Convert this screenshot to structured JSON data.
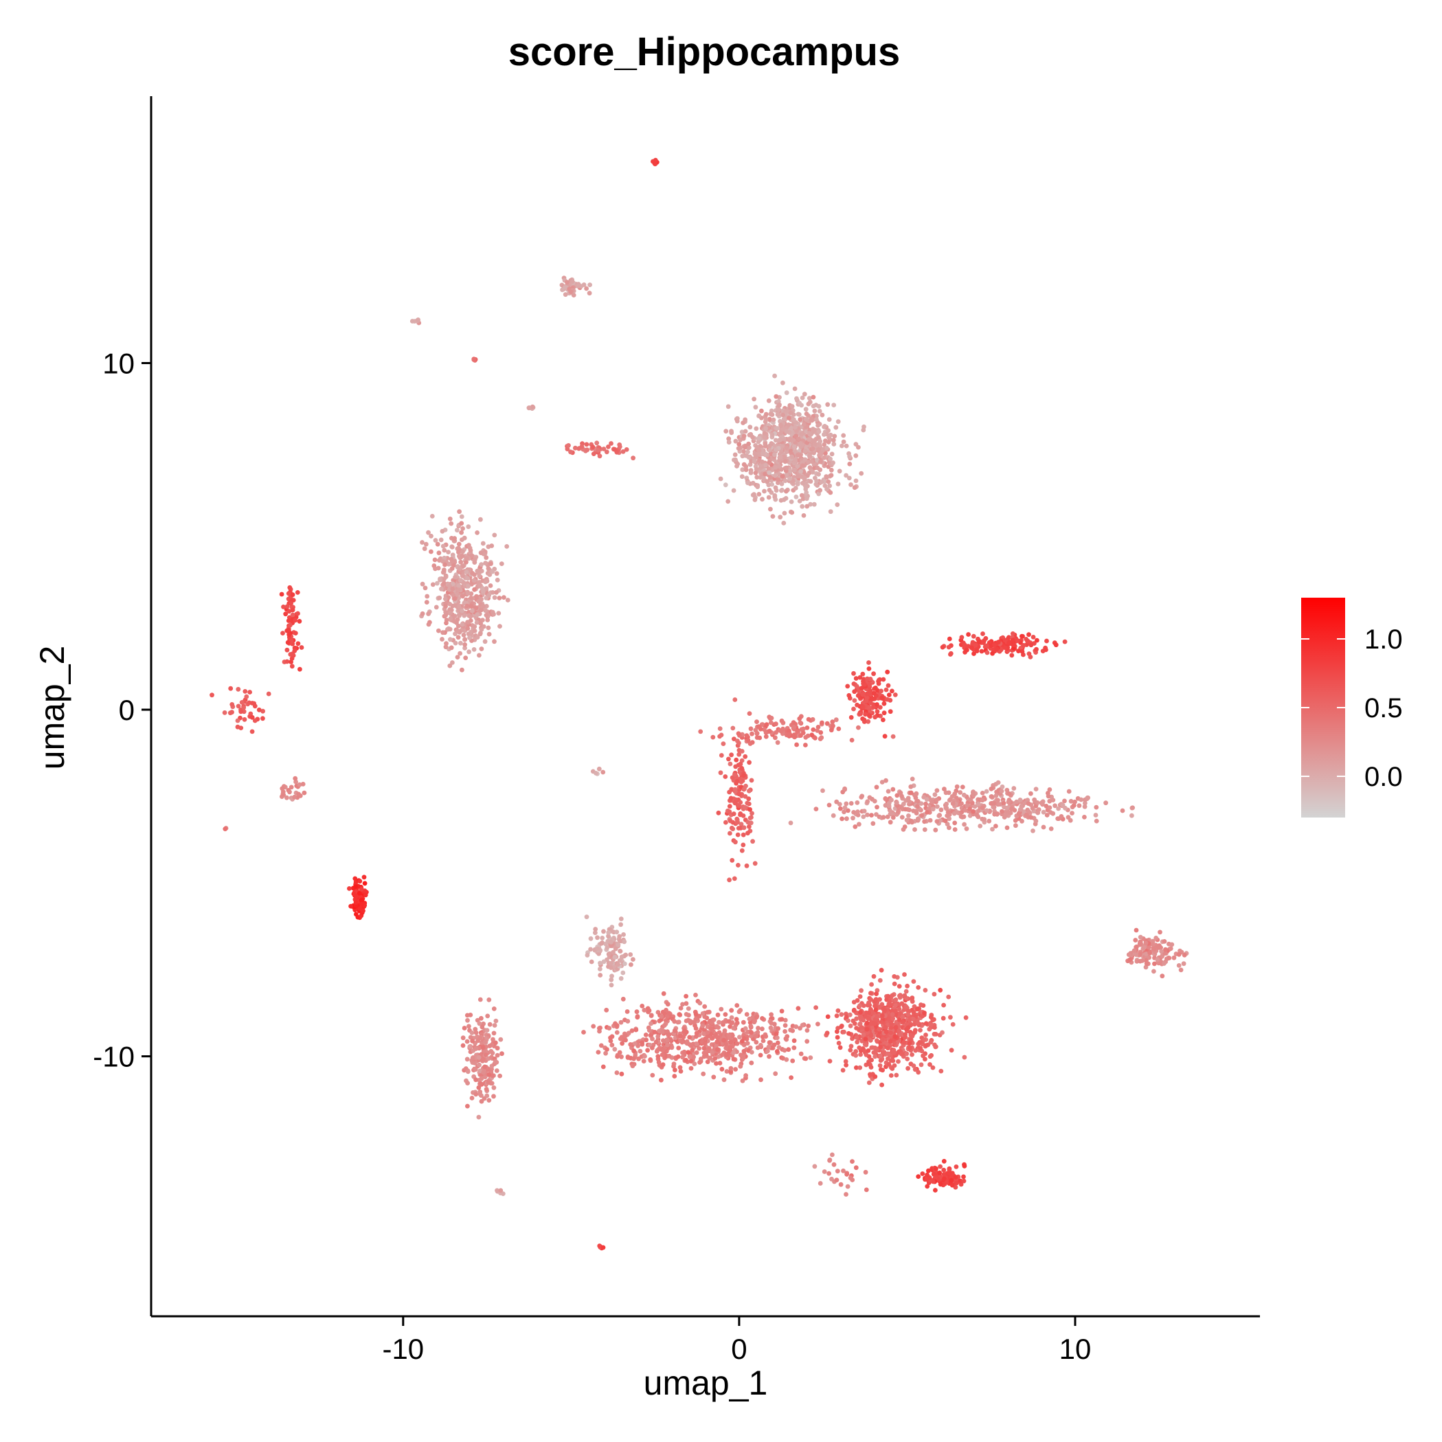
{
  "chart_data": {
    "type": "scatter",
    "title": "score_Hippocampus",
    "xlabel": "umap_1",
    "ylabel": "umap_2",
    "xlim": [
      -17.5,
      15.5
    ],
    "ylim": [
      -17.5,
      17.7
    ],
    "xticks": [
      -10,
      0,
      10
    ],
    "xtick_labels": [
      "-10",
      "0",
      "10"
    ],
    "yticks": [
      10,
      0,
      -10
    ],
    "ytick_labels": [
      "10",
      "0",
      "-10"
    ],
    "grid": false,
    "legend": {
      "type": "colorbar",
      "placement": "right",
      "min": -0.3,
      "max": 1.3,
      "ticks": [
        1.0,
        0.5,
        0.0
      ],
      "tick_labels": [
        "1.0",
        "0.5",
        "0.0"
      ],
      "low_color": "#d3d3d3",
      "high_color": "#ff0000"
    },
    "clusters": [
      {
        "label": "top-center ellipse",
        "center": [
          1.5,
          7.5
        ],
        "spread": [
          4.2,
          3.8
        ],
        "count": 900,
        "score": 0.05
      },
      {
        "label": "left oval",
        "center": [
          -8.2,
          3.5
        ],
        "spread": [
          2.6,
          4.5
        ],
        "count": 520,
        "score": 0.1
      },
      {
        "label": "right elongated band",
        "center": [
          6.8,
          -2.8
        ],
        "spread": [
          10.5,
          1.6
        ],
        "count": 480,
        "score": 0.2
      },
      {
        "label": "bottom dense right",
        "center": [
          4.5,
          -9.2
        ],
        "spread": [
          3.8,
          3.2
        ],
        "count": 650,
        "score": 0.55
      },
      {
        "label": "bottom arc",
        "center": [
          -1.0,
          -9.5
        ],
        "spread": [
          8.0,
          2.5
        ],
        "count": 650,
        "score": 0.35
      },
      {
        "label": "bottom-left hook",
        "center": [
          -7.6,
          -10.0
        ],
        "spread": [
          1.4,
          3.5
        ],
        "count": 200,
        "score": 0.25
      },
      {
        "label": "top arc fade",
        "center": [
          -3.8,
          -7.0
        ],
        "spread": [
          1.6,
          2.2
        ],
        "count": 120,
        "score": 0.02
      },
      {
        "label": "upper-right streak",
        "center": [
          7.8,
          1.9
        ],
        "spread": [
          3.8,
          0.8
        ],
        "count": 160,
        "score": 0.75
      },
      {
        "label": "center triangle",
        "center": [
          3.9,
          0.4
        ],
        "spread": [
          1.6,
          2.0
        ],
        "count": 150,
        "score": 0.7
      },
      {
        "label": "center branch",
        "center": [
          0.0,
          -2.5
        ],
        "spread": [
          1.1,
          4.8
        ],
        "count": 140,
        "score": 0.55
      },
      {
        "label": "center arms",
        "center": [
          1.5,
          -0.6
        ],
        "spread": [
          5.5,
          1.0
        ],
        "count": 120,
        "score": 0.4
      },
      {
        "label": "far-right small",
        "center": [
          12.3,
          -7.0
        ],
        "spread": [
          2.4,
          1.4
        ],
        "count": 120,
        "score": 0.25
      },
      {
        "label": "bottom-right small",
        "center": [
          6.1,
          -13.5
        ],
        "spread": [
          1.5,
          0.8
        ],
        "count": 110,
        "score": 0.8
      },
      {
        "label": "left dense small",
        "center": [
          -11.3,
          -5.4
        ],
        "spread": [
          0.6,
          1.6
        ],
        "count": 90,
        "score": 1.0
      },
      {
        "label": "left vertical strand",
        "center": [
          -13.3,
          2.5
        ],
        "spread": [
          0.6,
          3.4
        ],
        "count": 70,
        "score": 0.75
      },
      {
        "label": "far-left strand",
        "center": [
          -14.8,
          0.0
        ],
        "spread": [
          2.0,
          1.6
        ],
        "count": 40,
        "score": 0.6
      },
      {
        "label": "top small group",
        "center": [
          -4.9,
          12.2
        ],
        "spread": [
          1.1,
          0.7
        ],
        "count": 45,
        "score": 0.05
      },
      {
        "label": "small strand top",
        "center": [
          -4.2,
          7.5
        ],
        "spread": [
          2.8,
          0.6
        ],
        "count": 45,
        "score": 0.45
      },
      {
        "label": "left diagonal",
        "center": [
          -13.3,
          -2.3
        ],
        "spread": [
          1.0,
          0.9
        ],
        "count": 25,
        "score": 0.25
      },
      {
        "label": "lower-center diagonal",
        "center": [
          3.0,
          -13.4
        ],
        "spread": [
          2.0,
          1.5
        ],
        "count": 25,
        "score": 0.3
      },
      {
        "label": "top outlier",
        "center": [
          -2.5,
          15.8
        ],
        "spread": [
          0.2,
          0.2
        ],
        "count": 8,
        "score": 0.8
      },
      {
        "label": "small outlier a",
        "center": [
          -9.6,
          11.2
        ],
        "spread": [
          0.3,
          0.2
        ],
        "count": 6,
        "score": 0.05
      },
      {
        "label": "small outlier b",
        "center": [
          -6.2,
          8.7
        ],
        "spread": [
          0.4,
          0.2
        ],
        "count": 6,
        "score": 0.05
      },
      {
        "label": "small outlier c",
        "center": [
          -7.9,
          10.1
        ],
        "spread": [
          0.2,
          0.1
        ],
        "count": 4,
        "score": 0.5
      },
      {
        "label": "small outlier d",
        "center": [
          -4.1,
          -15.5
        ],
        "spread": [
          0.2,
          0.2
        ],
        "count": 6,
        "score": 0.8
      },
      {
        "label": "small outlier e",
        "center": [
          -7.1,
          -13.9
        ],
        "spread": [
          0.3,
          0.2
        ],
        "count": 5,
        "score": 0.05
      },
      {
        "label": "small outlier f",
        "center": [
          -4.2,
          -1.8
        ],
        "spread": [
          0.5,
          0.3
        ],
        "count": 5,
        "score": 0.05
      },
      {
        "label": "small outlier g",
        "center": [
          -15.3,
          -3.4
        ],
        "spread": [
          0.1,
          0.1
        ],
        "count": 2,
        "score": 0.4
      }
    ]
  }
}
